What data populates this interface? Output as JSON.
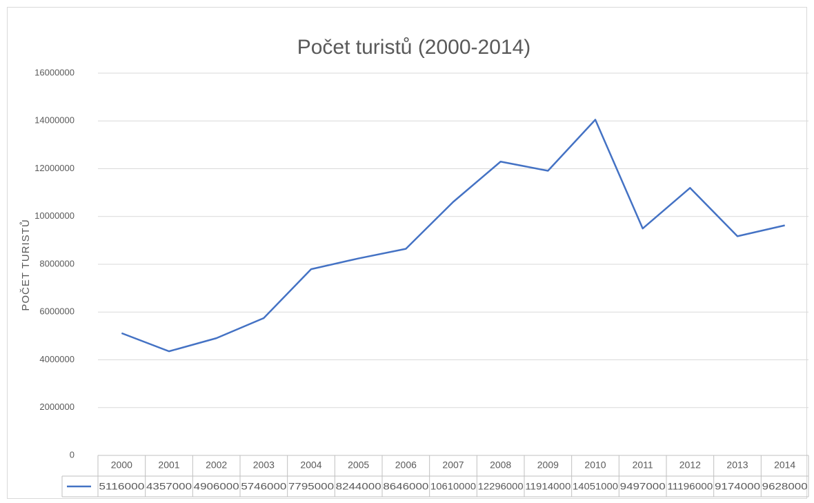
{
  "chart_data": {
    "type": "line",
    "title": "Počet turistů (2000-2014)",
    "y_label": "POČET TURISTŮ",
    "categories": [
      "2000",
      "2001",
      "2002",
      "2003",
      "2004",
      "2005",
      "2006",
      "2007",
      "2008",
      "2009",
      "2010",
      "2011",
      "2012",
      "2013",
      "2014"
    ],
    "values": [
      5116000,
      4357000,
      4906000,
      5746000,
      7795000,
      8244000,
      8646000,
      10610000,
      12296000,
      11914000,
      14051000,
      9497000,
      11196000,
      9174000,
      9628000
    ],
    "color": "#4472c4",
    "ylim": [
      0,
      16000000
    ],
    "yticks": [
      0,
      2000000,
      4000000,
      6000000,
      8000000,
      10000000,
      12000000,
      14000000,
      16000000
    ],
    "grid": true,
    "data_table": true
  }
}
